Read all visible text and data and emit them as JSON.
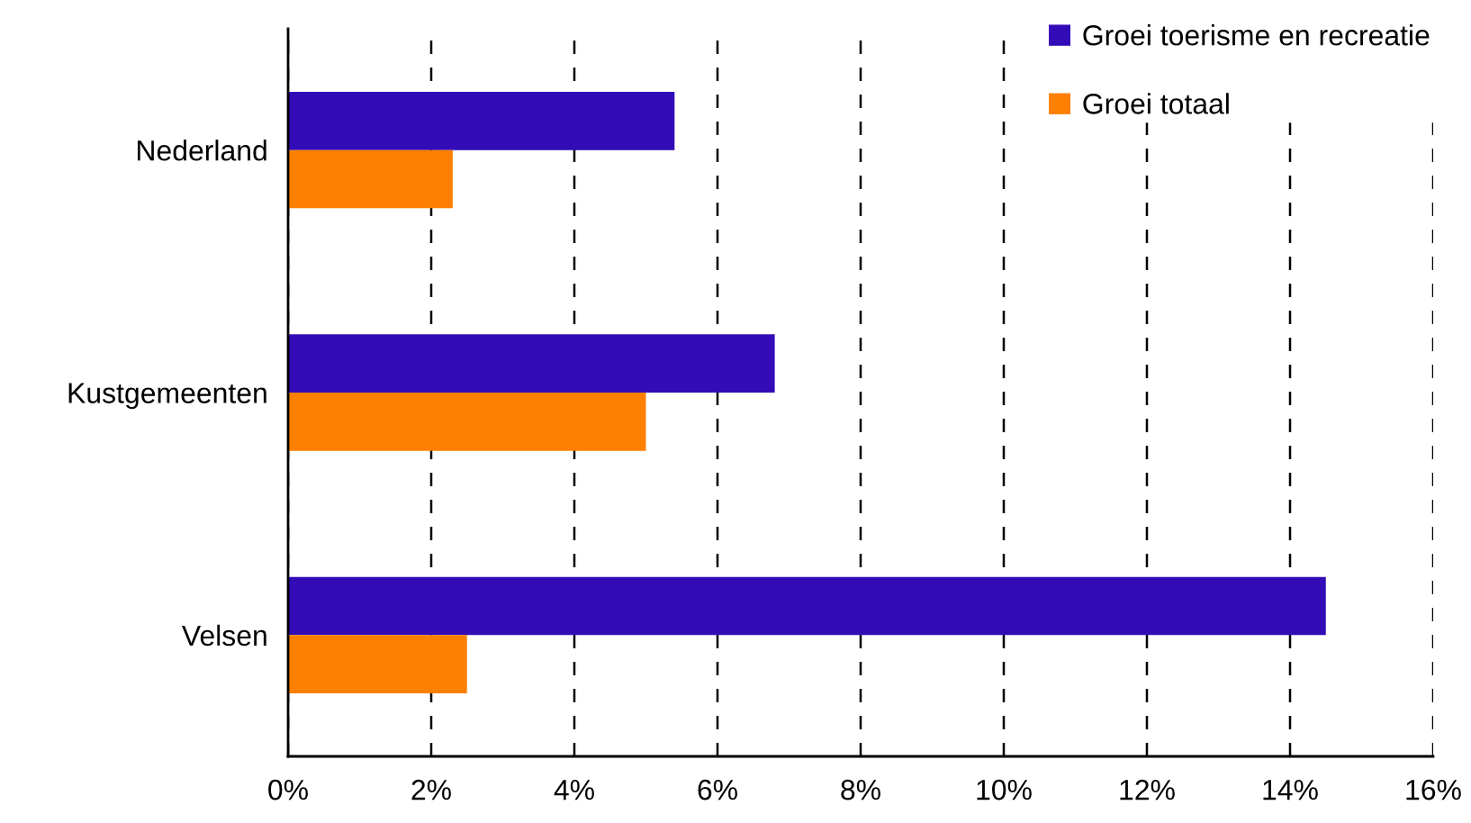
{
  "chart_data": {
    "type": "bar",
    "orientation": "horizontal",
    "categories": [
      "Nederland",
      "Kustgemeenten",
      "Velsen"
    ],
    "series": [
      {
        "name": "Groei toerisme en recreatie",
        "color": "#330cb8",
        "values": [
          5.4,
          6.8,
          14.5
        ]
      },
      {
        "name": "Groei totaal",
        "color": "#ff8000",
        "values": [
          2.3,
          5.0,
          2.5
        ]
      }
    ],
    "xlim": [
      0,
      16
    ],
    "xticks": [
      {
        "value": 0,
        "label": "0%"
      },
      {
        "value": 2,
        "label": "2%"
      },
      {
        "value": 4,
        "label": "4%"
      },
      {
        "value": 6,
        "label": "6%"
      },
      {
        "value": 8,
        "label": "8%"
      },
      {
        "value": 10,
        "label": "10%"
      },
      {
        "value": 12,
        "label": "12%"
      },
      {
        "value": 14,
        "label": "14%"
      },
      {
        "value": 16,
        "label": "16%"
      }
    ],
    "grid": "x",
    "legend": "top right"
  }
}
